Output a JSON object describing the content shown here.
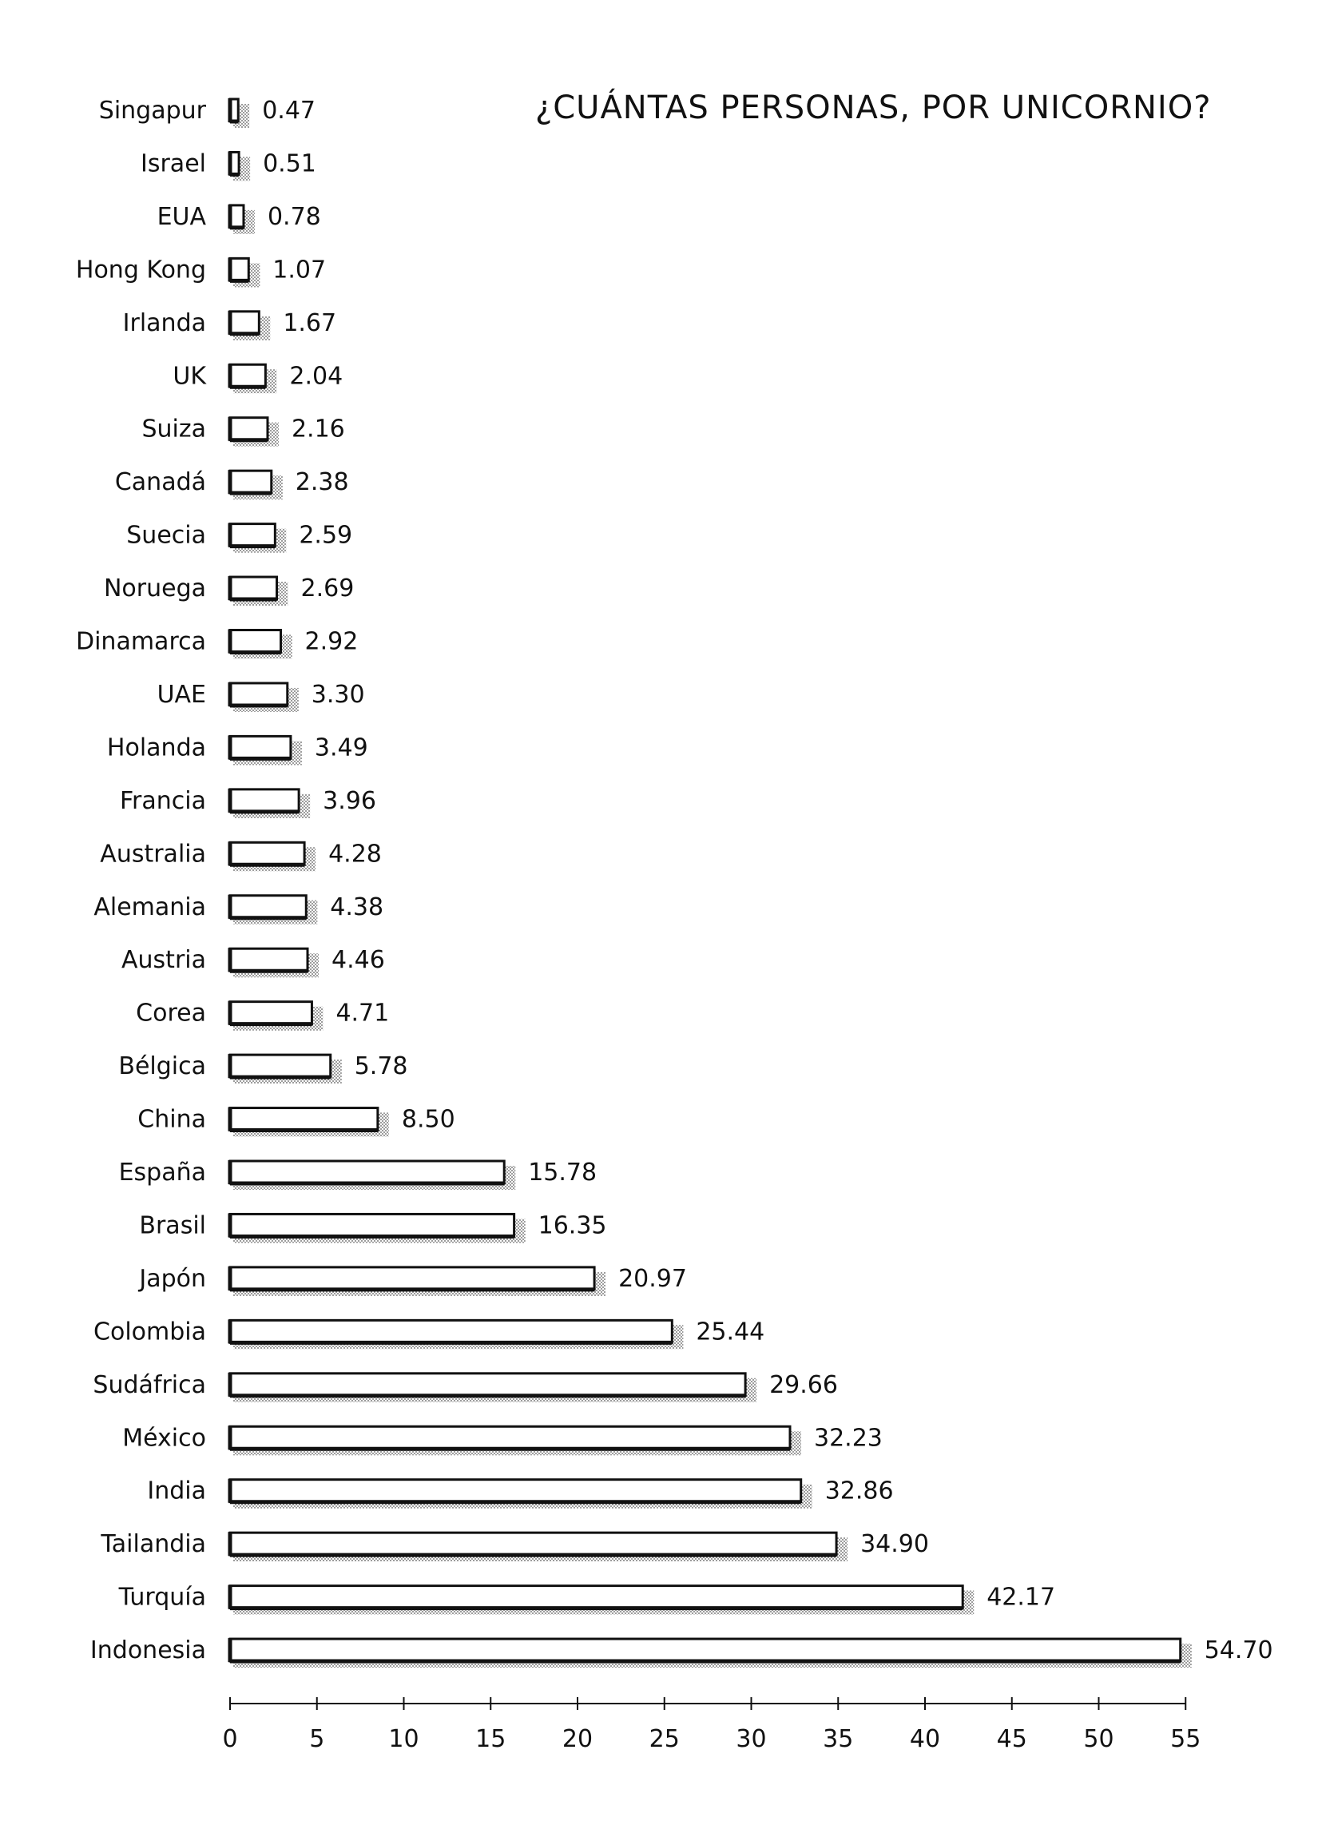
{
  "chart_data": {
    "type": "bar",
    "orientation": "horizontal",
    "title": "¿CUÁNTAS PERSONAS, POR UNICORNIO?",
    "categories": [
      "Singapur",
      "Israel",
      "EUA",
      "Hong Kong",
      "Irlanda",
      "UK",
      "Suiza",
      "Canadá",
      "Suecia",
      "Noruega",
      "Dinamarca",
      "UAE",
      "Holanda",
      "Francia",
      "Australia",
      "Alemania",
      "Austria",
      "Corea",
      "Bélgica",
      "China",
      "España",
      "Brasil",
      "Japón",
      "Colombia",
      "Sudáfrica",
      "México",
      "India",
      "Tailandia",
      "Turquía",
      "Indonesia"
    ],
    "values": [
      0.47,
      0.51,
      0.78,
      1.07,
      1.67,
      2.04,
      2.16,
      2.38,
      2.59,
      2.69,
      2.92,
      3.3,
      3.49,
      3.96,
      4.28,
      4.38,
      4.46,
      4.71,
      5.78,
      8.5,
      15.78,
      16.35,
      20.97,
      25.44,
      29.66,
      32.23,
      32.86,
      34.9,
      42.17,
      54.7
    ],
    "value_labels": [
      "0.47",
      "0.51",
      "0.78",
      "1.07",
      "1.67",
      "2.04",
      "2.16",
      "2.38",
      "2.59",
      "2.69",
      "2.92",
      "3.30",
      "3.49",
      "3.96",
      "4.28",
      "4.38",
      "4.46",
      "4.71",
      "5.78",
      "8.50",
      "15.78",
      "16.35",
      "20.97",
      "25.44",
      "29.66",
      "32.23",
      "32.86",
      "34.90",
      "42.17",
      "54.70"
    ],
    "xlim": [
      0,
      55
    ],
    "xticks": [
      0,
      5,
      10,
      15,
      20,
      25,
      30,
      35,
      40,
      45,
      50,
      55
    ],
    "xtick_labels": [
      "0",
      "5",
      "10",
      "15",
      "20",
      "25",
      "30",
      "35",
      "40",
      "45",
      "50",
      "55"
    ],
    "xlabel": "",
    "ylabel": "",
    "grid": false,
    "legend": false,
    "colors": {
      "bar_fill": "#ffffff",
      "bar_stroke": "#111111",
      "shadow": "#8a8a8a",
      "text": "#111111"
    }
  }
}
